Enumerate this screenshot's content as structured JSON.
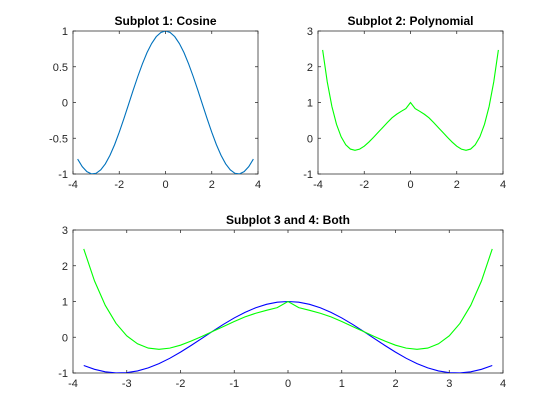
{
  "chart_data": [
    {
      "type": "line",
      "title": "Subplot 1: Cosine",
      "xlabel": "",
      "ylabel": "",
      "xlim": [
        -4,
        4
      ],
      "ylim": [
        -1,
        1
      ],
      "xticks": [
        -4,
        -2,
        0,
        2,
        4
      ],
      "yticks": [
        -1,
        -0.5,
        0,
        0.5,
        1
      ],
      "xtick_labels": [
        "-4",
        "-2",
        "0",
        "2",
        "4"
      ],
      "ytick_labels": [
        "-1",
        "-0.5",
        "0",
        "0.5",
        "1"
      ],
      "grid": false,
      "series": [
        {
          "color": "#0072bd",
          "x": [
            -3.8,
            -3.6,
            -3.4,
            -3.2,
            -3.0,
            -2.8,
            -2.6,
            -2.4,
            -2.2,
            -2.0,
            -1.8,
            -1.6,
            -1.4,
            -1.2,
            -1.0,
            -0.8,
            -0.6,
            -0.4,
            -0.2,
            0.0,
            0.2,
            0.4,
            0.6,
            0.8,
            1.0,
            1.2,
            1.4,
            1.6,
            1.8,
            2.0,
            2.2,
            2.4,
            2.6,
            2.8,
            3.0,
            3.2,
            3.4,
            3.6,
            3.8
          ],
          "y": [
            -0.791,
            -0.897,
            -0.967,
            -0.998,
            -0.99,
            -0.942,
            -0.857,
            -0.737,
            -0.589,
            -0.416,
            -0.227,
            -0.029,
            0.17,
            0.362,
            0.54,
            0.697,
            0.825,
            0.921,
            0.98,
            1.0,
            0.98,
            0.921,
            0.825,
            0.697,
            0.54,
            0.362,
            0.17,
            -0.029,
            -0.227,
            -0.416,
            -0.589,
            -0.737,
            -0.857,
            -0.942,
            -0.99,
            -0.998,
            -0.967,
            -0.897,
            -0.791
          ]
        }
      ]
    },
    {
      "type": "line",
      "title": "Subplot 2: Polynomial",
      "xlabel": "",
      "ylabel": "",
      "xlim": [
        -4,
        4
      ],
      "ylim": [
        -1,
        3
      ],
      "xticks": [
        -4,
        -2,
        0,
        2,
        4
      ],
      "yticks": [
        -1,
        0,
        1,
        2,
        3
      ],
      "xtick_labels": [
        "-4",
        "-2",
        "0",
        "2",
        "4"
      ],
      "ytick_labels": [
        "-1",
        "0",
        "1",
        "2",
        "3"
      ],
      "grid": false,
      "series": [
        {
          "color": "#00ff00",
          "x": [
            -3.8,
            -3.6,
            -3.4,
            -3.2,
            -3.0,
            -2.8,
            -2.6,
            -2.4,
            -2.2,
            -2.0,
            -1.8,
            -1.6,
            -1.4,
            -1.2,
            -1.0,
            -0.8,
            -0.6,
            -0.4,
            -0.2,
            0.0,
            0.2,
            0.4,
            0.6,
            0.8,
            1.0,
            1.2,
            1.4,
            1.6,
            1.8,
            2.0,
            2.2,
            2.4,
            2.6,
            2.8,
            3.0,
            3.2,
            3.4,
            3.6,
            3.8
          ],
          "y": [
            2.47,
            1.577,
            0.893,
            0.39,
            0.04,
            -0.183,
            -0.303,
            -0.338,
            -0.304,
            -0.222,
            -0.106,
            0.025,
            0.166,
            0.302,
            0.44,
            0.571,
            0.671,
            0.754,
            0.829,
            1.0,
            0.829,
            0.754,
            0.671,
            0.571,
            0.44,
            0.302,
            0.166,
            0.025,
            -0.106,
            -0.222,
            -0.304,
            -0.338,
            -0.303,
            -0.183,
            0.04,
            0.39,
            0.893,
            1.577,
            2.47
          ]
        }
      ]
    },
    {
      "type": "line",
      "title": "Subplot 3 and 4: Both",
      "xlabel": "",
      "ylabel": "",
      "xlim": [
        -4,
        4
      ],
      "ylim": [
        -1,
        3
      ],
      "xticks": [
        -4,
        -3,
        -2,
        -1,
        0,
        1,
        2,
        3,
        4
      ],
      "yticks": [
        -1,
        0,
        1,
        2,
        3
      ],
      "xtick_labels": [
        "-4",
        "-3",
        "-2",
        "-1",
        "0",
        "1",
        "2",
        "3",
        "4"
      ],
      "ytick_labels": [
        "-1",
        "0",
        "1",
        "2",
        "3"
      ],
      "grid": false,
      "series": [
        {
          "color": "#0000ff",
          "x": [
            -3.8,
            -3.6,
            -3.4,
            -3.2,
            -3.0,
            -2.8,
            -2.6,
            -2.4,
            -2.2,
            -2.0,
            -1.8,
            -1.6,
            -1.4,
            -1.2,
            -1.0,
            -0.8,
            -0.6,
            -0.4,
            -0.2,
            0.0,
            0.2,
            0.4,
            0.6,
            0.8,
            1.0,
            1.2,
            1.4,
            1.6,
            1.8,
            2.0,
            2.2,
            2.4,
            2.6,
            2.8,
            3.0,
            3.2,
            3.4,
            3.6,
            3.8
          ],
          "y": [
            -0.791,
            -0.897,
            -0.967,
            -0.998,
            -0.99,
            -0.942,
            -0.857,
            -0.737,
            -0.589,
            -0.416,
            -0.227,
            -0.029,
            0.17,
            0.362,
            0.54,
            0.697,
            0.825,
            0.921,
            0.98,
            1.0,
            0.98,
            0.921,
            0.825,
            0.697,
            0.54,
            0.362,
            0.17,
            -0.029,
            -0.227,
            -0.416,
            -0.589,
            -0.737,
            -0.857,
            -0.942,
            -0.99,
            -0.998,
            -0.967,
            -0.897,
            -0.791
          ]
        },
        {
          "color": "#00ff00",
          "x": [
            -3.8,
            -3.6,
            -3.4,
            -3.2,
            -3.0,
            -2.8,
            -2.6,
            -2.4,
            -2.2,
            -2.0,
            -1.8,
            -1.6,
            -1.4,
            -1.2,
            -1.0,
            -0.8,
            -0.6,
            -0.4,
            -0.2,
            0.0,
            0.2,
            0.4,
            0.6,
            0.8,
            1.0,
            1.2,
            1.4,
            1.6,
            1.8,
            2.0,
            2.2,
            2.4,
            2.6,
            2.8,
            3.0,
            3.2,
            3.4,
            3.6,
            3.8
          ],
          "y": [
            2.47,
            1.577,
            0.893,
            0.39,
            0.04,
            -0.183,
            -0.303,
            -0.338,
            -0.304,
            -0.222,
            -0.106,
            0.025,
            0.166,
            0.302,
            0.44,
            0.571,
            0.671,
            0.754,
            0.829,
            1.0,
            0.829,
            0.754,
            0.671,
            0.571,
            0.44,
            0.302,
            0.166,
            0.025,
            -0.106,
            -0.222,
            -0.304,
            -0.338,
            -0.303,
            -0.183,
            0.04,
            0.39,
            0.893,
            1.577,
            2.47
          ]
        }
      ]
    }
  ]
}
